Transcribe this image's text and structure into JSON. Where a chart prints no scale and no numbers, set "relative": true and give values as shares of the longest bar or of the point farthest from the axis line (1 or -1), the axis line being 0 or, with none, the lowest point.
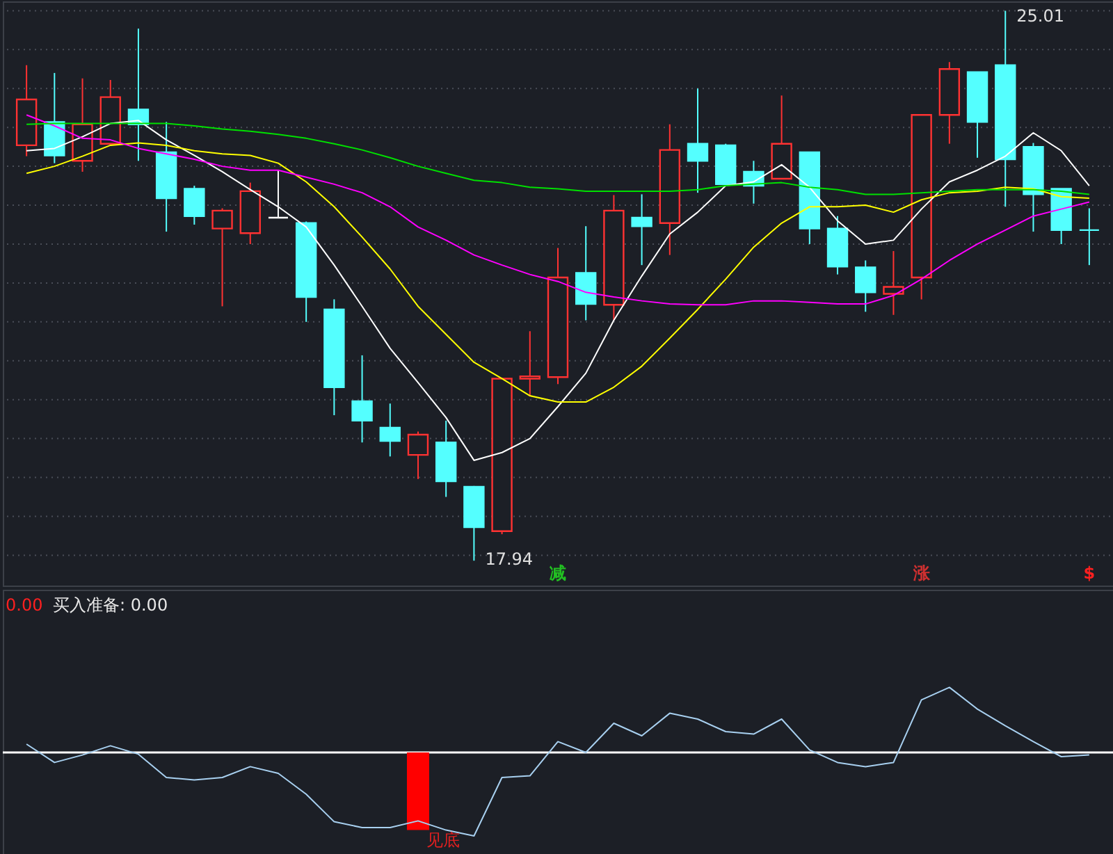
{
  "chart_data": [
    {
      "type": "candlestick",
      "categories": [
        null,
        null,
        null,
        null,
        null,
        null,
        null,
        null,
        null,
        null,
        null,
        null,
        null,
        null,
        null,
        null,
        null,
        null,
        null,
        null,
        null,
        null,
        null,
        null,
        null,
        null,
        null,
        null,
        null,
        null,
        null,
        null,
        null,
        null,
        null,
        null,
        null,
        null,
        null
      ],
      "ohlc": [
        [
          23.28,
          24.31,
          23.14,
          23.87
        ],
        [
          23.58,
          24.21,
          23.05,
          23.15
        ],
        [
          23.08,
          24.14,
          22.94,
          23.55
        ],
        [
          23.3,
          24.12,
          23.3,
          23.9
        ],
        [
          23.74,
          24.78,
          23.08,
          23.55
        ],
        [
          23.19,
          23.58,
          22.17,
          22.6
        ],
        [
          22.72,
          22.76,
          22.26,
          22.37
        ],
        [
          22.21,
          22.47,
          21.21,
          22.44
        ],
        [
          22.15,
          22.8,
          22.01,
          22.69
        ],
        [
          22.35,
          22.96,
          22.35,
          22.35
        ],
        [
          22.28,
          22.3,
          21.01,
          21.33
        ],
        [
          21.17,
          21.3,
          19.81,
          20.17
        ],
        [
          19.99,
          20.58,
          19.46,
          19.74
        ],
        [
          19.65,
          19.96,
          19.28,
          19.48
        ],
        [
          19.3,
          19.6,
          18.99,
          19.56
        ],
        [
          19.46,
          19.74,
          18.76,
          18.96
        ],
        [
          18.89,
          18.9,
          17.94,
          18.37
        ],
        [
          18.32,
          20.28,
          18.28,
          20.28
        ],
        [
          20.28,
          20.89,
          20.05,
          20.31
        ],
        [
          20.3,
          21.96,
          20.21,
          21.58
        ],
        [
          21.64,
          22.24,
          21.03,
          21.24
        ],
        [
          21.23,
          22.64,
          21.03,
          22.44
        ],
        [
          22.35,
          22.65,
          21.74,
          22.24
        ],
        [
          22.28,
          23.55,
          21.87,
          23.22
        ],
        [
          23.3,
          24.01,
          22.67,
          23.08
        ],
        [
          23.28,
          23.3,
          22.78,
          22.78
        ],
        [
          22.94,
          23.08,
          22.53,
          22.76
        ],
        [
          22.85,
          23.92,
          22.85,
          23.3
        ],
        [
          23.19,
          23.19,
          22.01,
          22.21
        ],
        [
          22.21,
          22.37,
          21.62,
          21.72
        ],
        [
          21.71,
          21.8,
          21.14,
          21.39
        ],
        [
          21.37,
          21.92,
          21.1,
          21.46
        ],
        [
          21.58,
          23.67,
          21.3,
          23.67
        ],
        [
          23.67,
          24.35,
          23.3,
          24.26
        ],
        [
          24.22,
          24.22,
          23.12,
          23.58
        ],
        [
          24.31,
          25.01,
          22.49,
          23.1
        ],
        [
          23.26,
          23.31,
          22.17,
          22.65
        ],
        [
          22.72,
          22.72,
          22.01,
          22.19
        ],
        [
          22.19,
          22.47,
          21.74,
          22.19
        ]
      ],
      "colors": [
        "#ff3232",
        "#54ffff",
        "#ff3232",
        "#ff3232",
        "#54ffff",
        "#54ffff",
        "#54ffff",
        "#ff3232",
        "#ff3232",
        "#ffffff",
        "#54ffff",
        "#54ffff",
        "#54ffff",
        "#54ffff",
        "#ff3232",
        "#54ffff",
        "#54ffff",
        "#ff3232",
        "#ff3232",
        "#ff3232",
        "#54ffff",
        "#ff3232",
        "#54ffff",
        "#ff3232",
        "#54ffff",
        "#54ffff",
        "#54ffff",
        "#ff3232",
        "#54ffff",
        "#54ffff",
        "#54ffff",
        "#ff3232",
        "#ff3232",
        "#ff3232",
        "#54ffff",
        "#54ffff",
        "#54ffff",
        "#54ffff",
        "#54ffff"
      ],
      "series": [
        {
          "type": "line",
          "color": "#ffffff",
          "values": [
            23.21,
            23.24,
            23.39,
            23.56,
            23.6,
            23.35,
            23.15,
            22.94,
            22.71,
            22.49,
            22.23,
            21.74,
            21.21,
            20.67,
            20.23,
            19.78,
            19.23,
            19.33,
            19.51,
            19.92,
            20.35,
            21.03,
            21.6,
            22.14,
            22.42,
            22.76,
            22.81,
            23.03,
            22.74,
            22.31,
            22.01,
            22.06,
            22.46,
            22.81,
            22.96,
            23.14,
            23.44,
            23.21,
            22.76
          ]
        },
        {
          "type": "line",
          "color": "#ffff00",
          "values": [
            22.92,
            23.01,
            23.14,
            23.28,
            23.31,
            23.28,
            23.21,
            23.17,
            23.15,
            23.05,
            22.81,
            22.49,
            22.1,
            21.69,
            21.21,
            20.85,
            20.49,
            20.28,
            20.06,
            19.98,
            19.98,
            20.17,
            20.44,
            20.8,
            21.17,
            21.56,
            21.97,
            22.28,
            22.49,
            22.49,
            22.51,
            22.42,
            22.58,
            22.67,
            22.69,
            22.74,
            22.72,
            22.62,
            22.6
          ]
        },
        {
          "type": "line",
          "color": "#ff00ff",
          "values": [
            23.67,
            23.53,
            23.37,
            23.35,
            23.24,
            23.17,
            23.1,
            23.01,
            22.96,
            22.96,
            22.87,
            22.78,
            22.67,
            22.49,
            22.23,
            22.06,
            21.87,
            21.74,
            21.62,
            21.53,
            21.39,
            21.33,
            21.28,
            21.24,
            21.23,
            21.23,
            21.28,
            21.28,
            21.26,
            21.24,
            21.24,
            21.35,
            21.56,
            21.8,
            22.01,
            22.19,
            22.37,
            22.46,
            22.55
          ]
        },
        {
          "type": "line",
          "color": "#00e000",
          "values": [
            23.55,
            23.56,
            23.56,
            23.56,
            23.56,
            23.56,
            23.53,
            23.49,
            23.46,
            23.42,
            23.37,
            23.3,
            23.22,
            23.12,
            23.01,
            22.92,
            22.83,
            22.8,
            22.74,
            22.72,
            22.69,
            22.69,
            22.69,
            22.69,
            22.71,
            22.76,
            22.78,
            22.8,
            22.74,
            22.71,
            22.65,
            22.65,
            22.67,
            22.69,
            22.71,
            22.71,
            22.71,
            22.69,
            22.65
          ]
        }
      ],
      "ylim": [
        17.62,
        25.13
      ],
      "yticks": [
        {
          "value": 25.01,
          "label": null
        },
        {
          "value": 24.51,
          "label": null
        },
        {
          "value": 24.01,
          "label": null
        },
        {
          "value": 23.51,
          "label": null
        },
        {
          "value": 23.01,
          "label": null
        },
        {
          "value": 22.51,
          "label": null
        },
        {
          "value": 22.01,
          "label": null
        },
        {
          "value": 21.51,
          "label": null
        },
        {
          "value": 21.01,
          "label": null
        },
        {
          "value": 20.51,
          "label": null
        },
        {
          "value": 20.01,
          "label": null
        },
        {
          "value": 19.51,
          "label": null
        },
        {
          "value": 19.01,
          "label": null
        },
        {
          "value": 18.51,
          "label": null
        },
        {
          "value": 18.01,
          "label": null
        }
      ],
      "grid": "y",
      "tick_labels": false,
      "annotations": [
        "17.94",
        "25.01",
        "减",
        "涨",
        "$"
      ]
    },
    {
      "type": "line",
      "relative": true,
      "categories": [
        null,
        null,
        null,
        null,
        null,
        null,
        null,
        null,
        null,
        null,
        null,
        null,
        null,
        null,
        null,
        null,
        null,
        null,
        null,
        null,
        null,
        null,
        null,
        null,
        null,
        null,
        null,
        null,
        null,
        null,
        null,
        null,
        null,
        null,
        null,
        null,
        null,
        null,
        null
      ],
      "series": [
        {
          "type": "bar",
          "color": "#ff0000",
          "values": [
            null,
            null,
            null,
            null,
            null,
            null,
            null,
            null,
            null,
            null,
            null,
            null,
            null,
            null,
            -0.93,
            null,
            null,
            null,
            null,
            null,
            null,
            null,
            null,
            null,
            null,
            null,
            null,
            null,
            null,
            null,
            null,
            null,
            null,
            null,
            null,
            null,
            null,
            null,
            null
          ]
        },
        {
          "type": "line",
          "color": "#a8d0f0",
          "values": [
            0.1,
            -0.12,
            -0.03,
            0.08,
            -0.02,
            -0.3,
            -0.33,
            -0.3,
            -0.17,
            -0.25,
            -0.5,
            -0.83,
            -0.9,
            -0.9,
            -0.82,
            -0.93,
            -1,
            -0.3,
            -0.28,
            0.13,
            0,
            0.35,
            0.2,
            0.47,
            0.4,
            0.25,
            0.22,
            0.4,
            0.03,
            -0.12,
            -0.17,
            -0.12,
            0.63,
            0.78,
            0.52,
            0.32,
            0.13,
            -0.05,
            -0.03
          ]
        }
      ],
      "ref_lines": [
        {
          "axis": "y",
          "value": 0,
          "color": "#ffffff"
        }
      ],
      "annotations": [
        "0.00",
        "买入准备: 0.00",
        "见底"
      ]
    }
  ]
}
